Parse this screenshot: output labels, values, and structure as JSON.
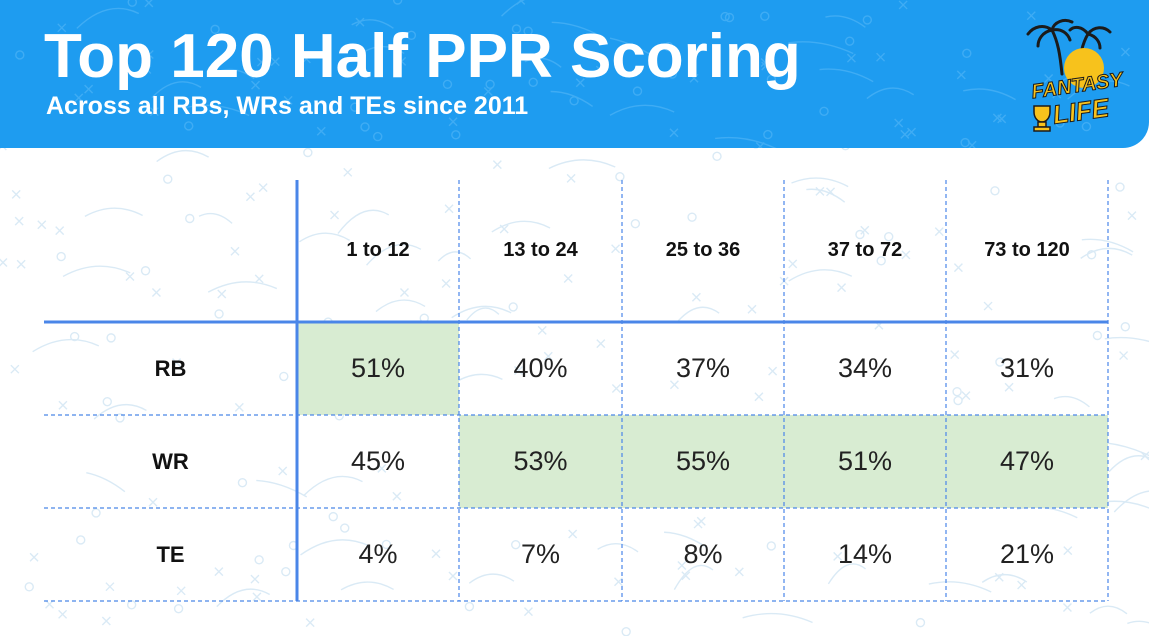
{
  "header": {
    "title": "Top 120 Half PPR Scoring",
    "subtitle": "Across all RBs, WRs and TEs since 2011"
  },
  "logo": {
    "line1": "FANTASY",
    "line2": "LIFE"
  },
  "colors": {
    "header_bg": "#1e9cf0",
    "highlight": "#d8ecd2",
    "grid": "#4a86e8",
    "logo_yellow": "#f7c21c"
  },
  "chart_data": {
    "type": "table",
    "title": "Top 120 Half PPR Scoring",
    "subtitle": "Across all RBs, WRs and TEs since 2011",
    "columns": [
      "1 to 12",
      "13 to 24",
      "25 to 36",
      "37 to 72",
      "73 to 120"
    ],
    "rows": [
      "RB",
      "WR",
      "TE"
    ],
    "values": [
      [
        "51%",
        "40%",
        "37%",
        "34%",
        "31%"
      ],
      [
        "45%",
        "53%",
        "55%",
        "51%",
        "47%"
      ],
      [
        "4%",
        "7%",
        "8%",
        "14%",
        "21%"
      ]
    ],
    "highlighted": [
      [
        0,
        0
      ],
      [
        1,
        1
      ],
      [
        1,
        2
      ],
      [
        1,
        3
      ],
      [
        1,
        4
      ]
    ]
  }
}
